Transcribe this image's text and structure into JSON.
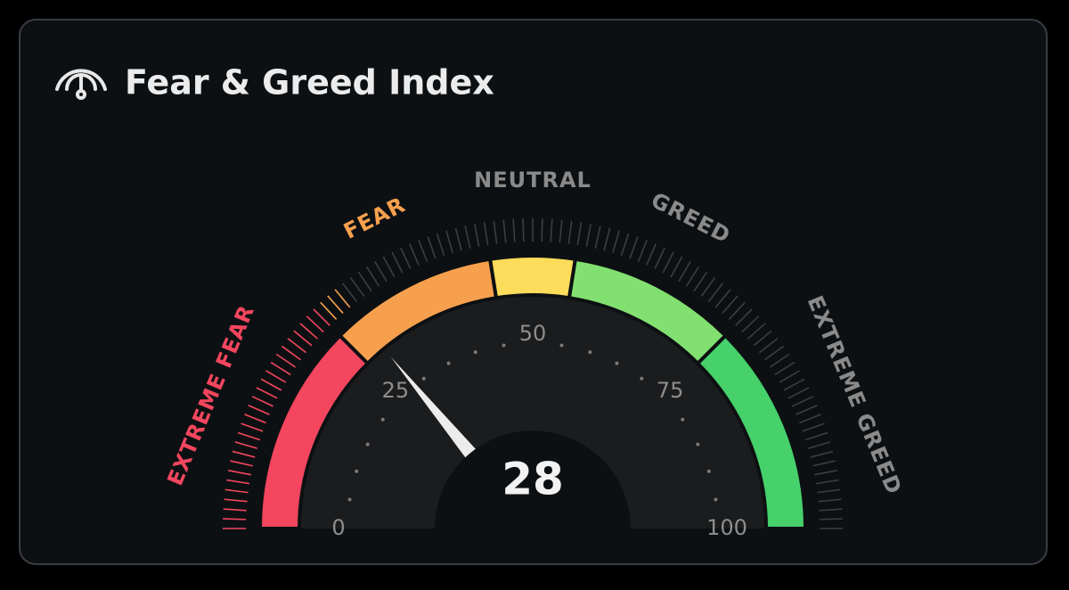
{
  "chart_data": {
    "type": "gauge",
    "title": "Fear & Greed Index",
    "value": 28,
    "ylim": [
      0,
      100
    ],
    "yticks": [
      0,
      25,
      50,
      75,
      100
    ],
    "bands": [
      {
        "name": "EXTREME FEAR",
        "color": "#f4465e",
        "range": [
          0,
          25
        ]
      },
      {
        "name": "FEAR",
        "color": "#f6a04e",
        "range": [
          25,
          45
        ]
      },
      {
        "name": "NEUTRAL",
        "color": "#fcdc5a",
        "range": [
          45,
          55
        ]
      },
      {
        "name": "GREED",
        "color": "#82e070",
        "range": [
          55,
          75
        ]
      },
      {
        "name": "EXTREME GREED",
        "color": "#46d16b",
        "range": [
          75,
          100
        ]
      }
    ]
  }
}
